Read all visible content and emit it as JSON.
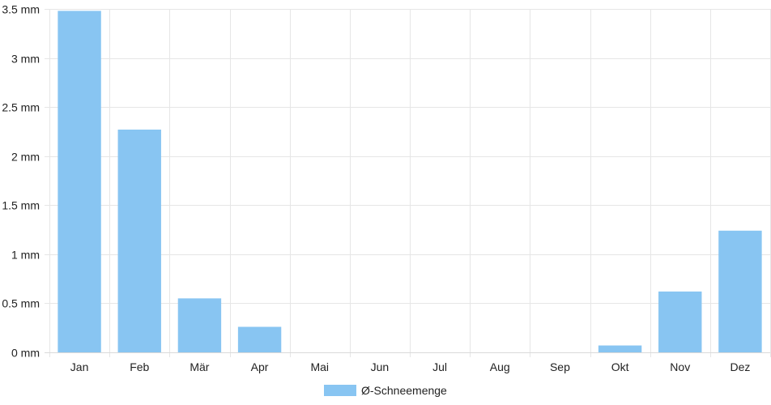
{
  "chart_data": {
    "type": "bar",
    "categories": [
      "Jan",
      "Feb",
      "Mär",
      "Apr",
      "Mai",
      "Jun",
      "Jul",
      "Aug",
      "Sep",
      "Okt",
      "Nov",
      "Dez"
    ],
    "series": [
      {
        "name": "Ø-Schneemenge",
        "values": [
          3.48,
          2.27,
          0.55,
          0.26,
          0,
          0,
          0,
          0,
          0,
          0.07,
          0.62,
          1.24
        ],
        "color": "#88c5f2"
      }
    ],
    "ylim": [
      0,
      3.5
    ],
    "yticks": [
      0,
      0.5,
      1,
      1.5,
      2,
      2.5,
      3,
      3.5
    ],
    "yunit": "mm",
    "grid": true,
    "legend_position": "bottom"
  }
}
